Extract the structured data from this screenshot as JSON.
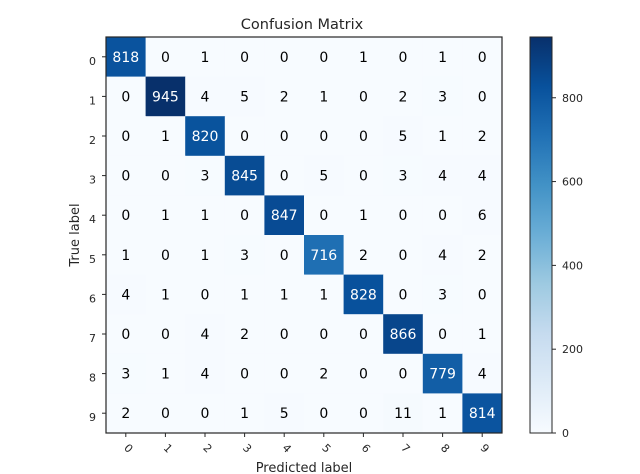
{
  "chart_data": {
    "type": "heatmap",
    "title": "Confusion Matrix",
    "xlabel": "Predicted label",
    "ylabel": "True label",
    "x_categories": [
      "0",
      "1",
      "2",
      "3",
      "4",
      "5",
      "6",
      "7",
      "8",
      "9"
    ],
    "y_categories": [
      "0",
      "1",
      "2",
      "3",
      "4",
      "5",
      "6",
      "7",
      "8",
      "9"
    ],
    "x_tick_rotation_deg": 45,
    "values": [
      [
        818,
        0,
        1,
        0,
        0,
        0,
        1,
        0,
        1,
        0
      ],
      [
        0,
        945,
        4,
        5,
        2,
        1,
        0,
        2,
        3,
        0
      ],
      [
        0,
        1,
        820,
        0,
        0,
        0,
        0,
        5,
        1,
        2
      ],
      [
        0,
        0,
        3,
        845,
        0,
        5,
        0,
        3,
        4,
        4
      ],
      [
        0,
        1,
        1,
        0,
        847,
        0,
        1,
        0,
        0,
        6
      ],
      [
        1,
        0,
        1,
        3,
        0,
        716,
        2,
        0,
        4,
        2
      ],
      [
        4,
        1,
        0,
        1,
        1,
        1,
        828,
        0,
        3,
        0
      ],
      [
        0,
        0,
        4,
        2,
        0,
        0,
        0,
        866,
        0,
        1
      ],
      [
        3,
        1,
        4,
        0,
        0,
        2,
        0,
        0,
        779,
        4
      ],
      [
        2,
        0,
        0,
        1,
        5,
        0,
        0,
        11,
        1,
        814
      ]
    ],
    "colormap": "Blues",
    "colormap_stops": [
      "#f7fbff",
      "#deebf7",
      "#c6dbef",
      "#9ecae1",
      "#6baed6",
      "#4292c6",
      "#2171b5",
      "#08519c",
      "#08306b"
    ],
    "colorbar": {
      "min": 0,
      "max": 945,
      "ticks": [
        0,
        200,
        400,
        600,
        800
      ]
    },
    "grid": false,
    "text_color_dark": "#000000",
    "text_color_light": "#ffffff"
  }
}
